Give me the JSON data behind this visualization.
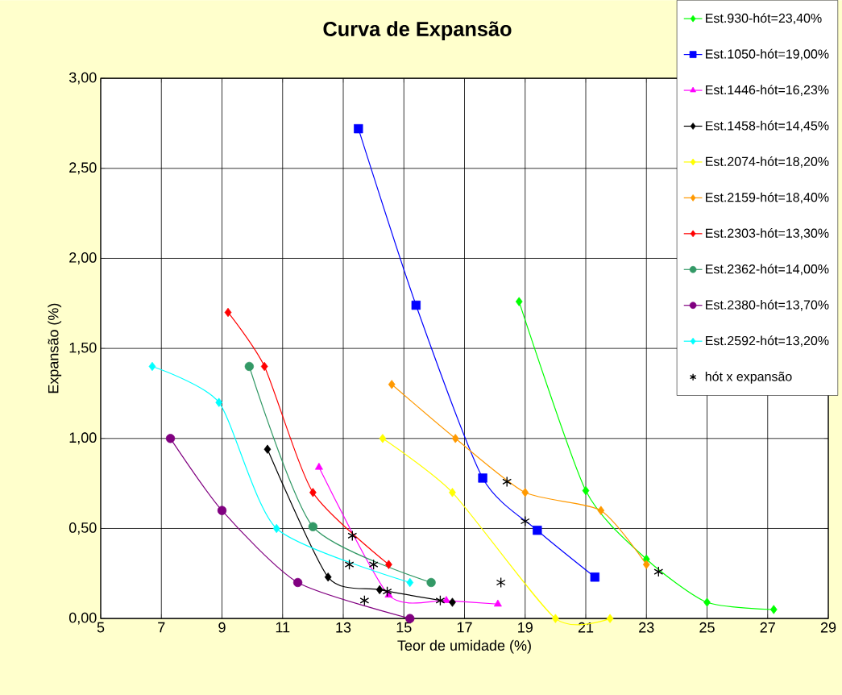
{
  "chart_data": {
    "type": "line",
    "title": "Curva de Expansão",
    "xlabel": "Teor de umidade (%)",
    "ylabel": "Expansão (%)",
    "xlim": [
      5,
      29
    ],
    "xticks": [
      5,
      7,
      9,
      11,
      13,
      15,
      17,
      19,
      21,
      23,
      25,
      27,
      29
    ],
    "ylim": [
      0,
      3
    ],
    "yticks": [
      {
        "value": 0,
        "label": "0,00"
      },
      {
        "value": 0.5,
        "label": "0,50"
      },
      {
        "value": 1,
        "label": "1,00"
      },
      {
        "value": 1.5,
        "label": "1,50"
      },
      {
        "value": 2,
        "label": "2,00"
      },
      {
        "value": 2.5,
        "label": "2,50"
      },
      {
        "value": 3,
        "label": "3,00"
      }
    ],
    "grid": true,
    "legend": "top right",
    "series": [
      {
        "name": "Est.930-hót=23,40%",
        "color": "#00ff00",
        "marker": "diamond",
        "x": [
          18.8,
          21.0,
          23.0,
          25.0,
          27.2
        ],
        "values": [
          1.76,
          0.71,
          0.33,
          0.09,
          0.05
        ]
      },
      {
        "name": "Est.1050-hót=19,00%",
        "color": "#0000ff",
        "marker": "square",
        "x": [
          13.5,
          15.4,
          17.6,
          19.4,
          21.3
        ],
        "values": [
          2.72,
          1.74,
          0.78,
          0.49,
          0.23
        ]
      },
      {
        "name": "Est.1446-hót=16,23%",
        "color": "#ff00ff",
        "marker": "triangle",
        "x": [
          12.2,
          14.5,
          16.4,
          18.1
        ],
        "values": [
          0.84,
          0.13,
          0.1,
          0.08
        ]
      },
      {
        "name": "Est.1458-hót=14,45%",
        "color": "#000000",
        "marker": "diamond",
        "x": [
          10.5,
          12.5,
          14.2,
          16.6
        ],
        "values": [
          0.94,
          0.23,
          0.16,
          0.09
        ]
      },
      {
        "name": "Est.2074-hót=18,20%",
        "color": "#ffff00",
        "marker": "diamond",
        "x": [
          14.3,
          16.6,
          20.0,
          21.8
        ],
        "values": [
          1.0,
          0.7,
          0.0,
          0.0
        ]
      },
      {
        "name": "Est.2159-hót=18,40%",
        "color": "#ff9900",
        "marker": "diamond",
        "x": [
          14.6,
          16.7,
          19.0,
          21.5,
          23.0
        ],
        "values": [
          1.3,
          1.0,
          0.7,
          0.6,
          0.3
        ]
      },
      {
        "name": "Est.2303-hót=13,30%",
        "color": "#ff0000",
        "marker": "diamond",
        "x": [
          9.2,
          10.4,
          12.0,
          14.5
        ],
        "values": [
          1.7,
          1.4,
          0.7,
          0.3
        ]
      },
      {
        "name": "Est.2362-hót=14,00%",
        "color": "#339966",
        "marker": "circle",
        "x": [
          9.9,
          12.0,
          15.9
        ],
        "values": [
          1.4,
          0.51,
          0.2
        ]
      },
      {
        "name": "Est.2380-hót=13,70%",
        "color": "#800080",
        "marker": "circle",
        "x": [
          7.3,
          9.0,
          11.5,
          15.2
        ],
        "values": [
          1.0,
          0.6,
          0.2,
          0.0
        ]
      },
      {
        "name": "Est.2592-hót=13,20%",
        "color": "#00ffff",
        "marker": "diamond",
        "x": [
          6.7,
          8.9,
          10.8,
          15.2
        ],
        "values": [
          1.4,
          1.2,
          0.5,
          0.2
        ]
      },
      {
        "name": "hót x expansão",
        "type": "scatter",
        "color": "#000000",
        "marker": "cross",
        "x": [
          13.3,
          13.2,
          14.0,
          13.7,
          14.45,
          16.2,
          18.2,
          18.4,
          19.0,
          23.4
        ],
        "values": [
          0.46,
          0.3,
          0.3,
          0.1,
          0.15,
          0.1,
          0.2,
          0.76,
          0.54,
          0.26
        ]
      }
    ]
  }
}
